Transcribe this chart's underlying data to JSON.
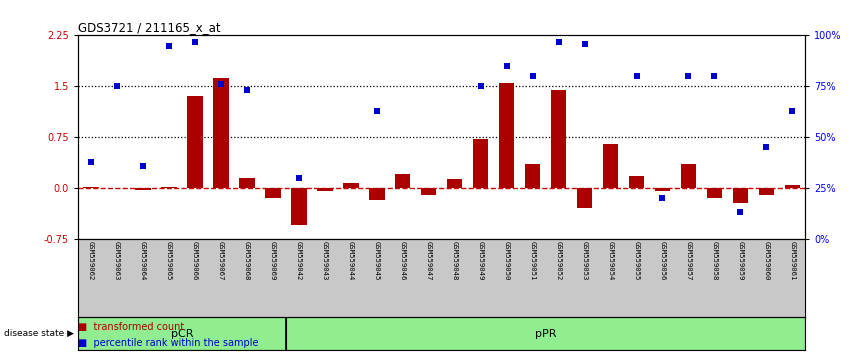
{
  "title": "GDS3721 / 211165_x_at",
  "samples": [
    "GSM559062",
    "GSM559063",
    "GSM559064",
    "GSM559065",
    "GSM559066",
    "GSM559067",
    "GSM559068",
    "GSM559069",
    "GSM559042",
    "GSM559043",
    "GSM559044",
    "GSM559045",
    "GSM559046",
    "GSM559047",
    "GSM559048",
    "GSM559049",
    "GSM559050",
    "GSM559051",
    "GSM559052",
    "GSM559053",
    "GSM559054",
    "GSM559055",
    "GSM559056",
    "GSM559057",
    "GSM559058",
    "GSM559059",
    "GSM559060",
    "GSM559061"
  ],
  "transformed_count": [
    0.02,
    0.0,
    -0.03,
    0.02,
    1.35,
    1.62,
    0.15,
    -0.15,
    -0.55,
    -0.05,
    0.07,
    -0.18,
    0.2,
    -0.1,
    0.13,
    0.72,
    1.55,
    0.35,
    1.45,
    -0.3,
    0.65,
    0.18,
    -0.05,
    0.35,
    -0.15,
    -0.22,
    -0.1,
    0.05
  ],
  "percentile_rank_pct": [
    38,
    75,
    36,
    95,
    97,
    76,
    73,
    null,
    30,
    null,
    null,
    63,
    null,
    null,
    null,
    75,
    85,
    80,
    97,
    96,
    null,
    80,
    20,
    80,
    80,
    13,
    45,
    63
  ],
  "pcr_count": 8,
  "groups": [
    {
      "label": "pCR",
      "start": 0,
      "end": 8,
      "color": "#90EE90"
    },
    {
      "label": "pPR",
      "start": 8,
      "end": 28,
      "color": "#90EE90"
    }
  ],
  "bar_color": "#AA0000",
  "dot_color": "#0000CC",
  "ylim_left": [
    -0.75,
    2.25
  ],
  "yticks_left": [
    -0.75,
    0.0,
    0.75,
    1.5,
    2.25
  ],
  "pct_ticks": [
    0,
    25,
    50,
    75,
    100
  ],
  "hlines_dotted": [
    0.75,
    1.5
  ],
  "hline_zero_color": "#CC0000",
  "label_bg": "#C8C8C8",
  "bg_color": "#ffffff"
}
